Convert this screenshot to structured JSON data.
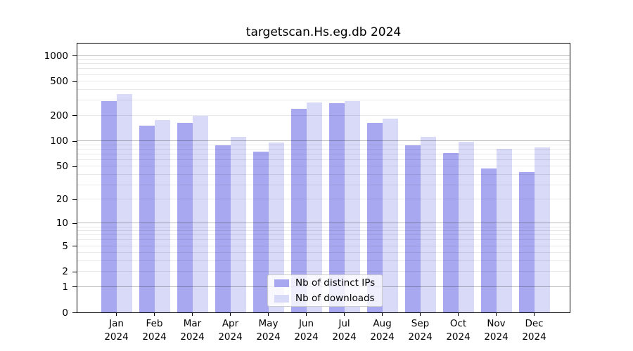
{
  "chart_data": {
    "type": "bar",
    "title": "targetscan.Hs.eg.db 2024",
    "categories": [
      "Jan",
      "Feb",
      "Mar",
      "Apr",
      "May",
      "Jun",
      "Jul",
      "Aug",
      "Sep",
      "Oct",
      "Nov",
      "Dec"
    ],
    "x_year_label": "2024",
    "series": [
      {
        "name": "Nb of distinct IPs",
        "color": "#a8a8f0",
        "values": [
          290,
          150,
          164,
          89,
          75,
          238,
          279,
          162,
          89,
          71,
          47,
          43
        ]
      },
      {
        "name": "Nb of downloads",
        "color": "#d9d9f8",
        "values": [
          351,
          176,
          198,
          112,
          96,
          283,
          295,
          182,
          112,
          98,
          81,
          84
        ]
      }
    ],
    "yscale": "log1p",
    "yticks": [
      1000,
      500,
      200,
      100,
      50,
      20,
      10,
      5,
      2,
      1,
      0
    ],
    "ylim": [
      0,
      1380
    ],
    "grid": "on",
    "legend_position": "lower-center"
  },
  "colors": {
    "grid_major": "rgba(0,0,0,0.28)",
    "grid_minor": "rgba(0,0,0,0.09)",
    "spine": "#000000",
    "background": "#ffffff"
  }
}
